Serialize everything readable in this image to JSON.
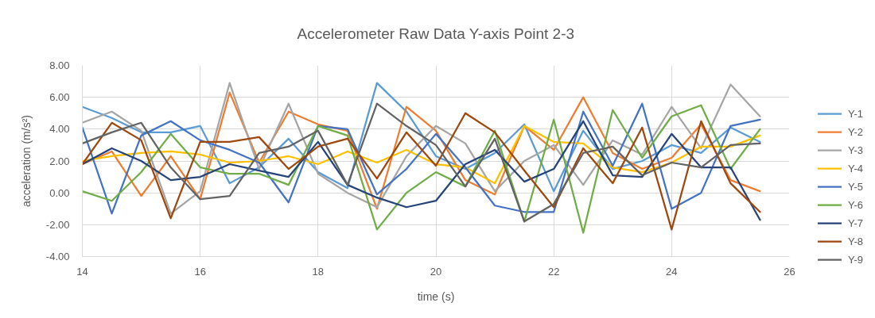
{
  "chart_data": {
    "type": "line",
    "title": "Accelerometer Raw Data Y-axis Point 2-3",
    "xlabel": "time (s)",
    "ylabel": "acceleration (m/s²)",
    "x": [
      14,
      14.5,
      15,
      15.5,
      16,
      16.5,
      17,
      17.5,
      18,
      18.5,
      19,
      19.5,
      20,
      20.5,
      21,
      21.5,
      22,
      22.5,
      23,
      23.5,
      24,
      24.5,
      25,
      25.5
    ],
    "xlim": [
      14,
      26
    ],
    "xticks": [
      14,
      16,
      18,
      20,
      22,
      24,
      26
    ],
    "ylim": [
      -4,
      8
    ],
    "yticks": [
      {
        "value": -4,
        "label": "-4.00"
      },
      {
        "value": -2,
        "label": "-2.00"
      },
      {
        "value": 0,
        "label": "0.00"
      },
      {
        "value": 2,
        "label": "2.00"
      },
      {
        "value": 4,
        "label": "4.00"
      },
      {
        "value": 6,
        "label": "6.00"
      },
      {
        "value": 8,
        "label": "8.00"
      }
    ],
    "grid": true,
    "legend": "right",
    "line_style": "solid",
    "series": [
      {
        "name": "Y-1",
        "color": "#5b9bd5",
        "values": [
          5.4,
          4.7,
          3.8,
          3.8,
          4.2,
          0.6,
          1.6,
          3.4,
          1.3,
          0.3,
          6.9,
          5.1,
          2.3,
          1.5,
          2.5,
          4.3,
          0.1,
          3.9,
          1.5,
          2.0,
          3.0,
          2.5,
          4.1,
          3.2
        ]
      },
      {
        "name": "Y-2",
        "color": "#ed7d31",
        "values": [
          1.8,
          2.6,
          -0.2,
          2.3,
          -0.4,
          6.3,
          1.9,
          5.1,
          4.3,
          3.9,
          -1.0,
          5.4,
          3.9,
          0.8,
          -0.1,
          4.2,
          2.7,
          6.0,
          2.5,
          1.5,
          2.2,
          4.3,
          0.8,
          0.1
        ]
      },
      {
        "name": "Y-3",
        "color": "#a5a5a5",
        "values": [
          4.4,
          5.1,
          3.9,
          -1.3,
          0.1,
          6.9,
          1.5,
          5.6,
          1.2,
          0.0,
          -0.9,
          2.3,
          4.2,
          3.1,
          0.1,
          2.0,
          3.0,
          0.5,
          3.3,
          2.4,
          5.4,
          2.8,
          6.8,
          4.8
        ]
      },
      {
        "name": "Y-4",
        "color": "#ffc000",
        "values": [
          2.0,
          2.3,
          2.5,
          2.6,
          2.4,
          1.9,
          2.0,
          2.3,
          1.8,
          2.6,
          1.9,
          2.7,
          1.8,
          1.6,
          0.6,
          4.2,
          3.2,
          3.1,
          1.6,
          1.3,
          1.9,
          2.9,
          2.9,
          3.6
        ]
      },
      {
        "name": "Y-5",
        "color": "#4472c4",
        "values": [
          4.1,
          -1.3,
          3.6,
          4.5,
          3.3,
          2.7,
          1.9,
          -0.6,
          4.2,
          4.0,
          -0.1,
          1.5,
          3.7,
          1.6,
          -0.8,
          -1.2,
          -1.2,
          5.1,
          1.7,
          5.6,
          -1.0,
          0.0,
          4.2,
          4.6
        ]
      },
      {
        "name": "Y-6",
        "color": "#70ad47",
        "values": [
          0.1,
          -0.5,
          1.3,
          3.7,
          1.6,
          1.2,
          1.2,
          0.5,
          4.2,
          3.6,
          -2.3,
          0.0,
          1.3,
          0.4,
          3.9,
          -1.8,
          4.6,
          -2.5,
          5.2,
          2.2,
          4.8,
          5.5,
          1.5,
          4.0
        ]
      },
      {
        "name": "Y-7",
        "color": "#264478",
        "values": [
          1.8,
          2.8,
          2.0,
          0.8,
          1.0,
          1.8,
          1.4,
          1.0,
          3.2,
          0.5,
          -0.3,
          -0.9,
          -0.5,
          1.8,
          2.7,
          0.7,
          1.5,
          4.5,
          1.1,
          1.0,
          3.7,
          1.6,
          1.6,
          -1.7
        ]
      },
      {
        "name": "Y-8",
        "color": "#9e480e",
        "values": [
          1.8,
          4.4,
          3.3,
          -1.6,
          3.2,
          3.2,
          3.5,
          1.5,
          2.9,
          3.4,
          0.9,
          3.8,
          1.7,
          5.0,
          3.8,
          1.4,
          -0.9,
          2.8,
          0.6,
          4.1,
          -2.3,
          4.5,
          0.6,
          -1.2
        ]
      },
      {
        "name": "Y-9",
        "color": "#636363",
        "values": [
          3.1,
          3.8,
          4.4,
          1.6,
          -0.4,
          -0.2,
          2.5,
          2.9,
          3.9,
          0.5,
          5.6,
          4.2,
          3.0,
          0.4,
          3.4,
          -1.8,
          -0.7,
          2.5,
          2.9,
          1.1,
          1.9,
          1.6,
          3.0,
          3.1
        ]
      }
    ]
  }
}
